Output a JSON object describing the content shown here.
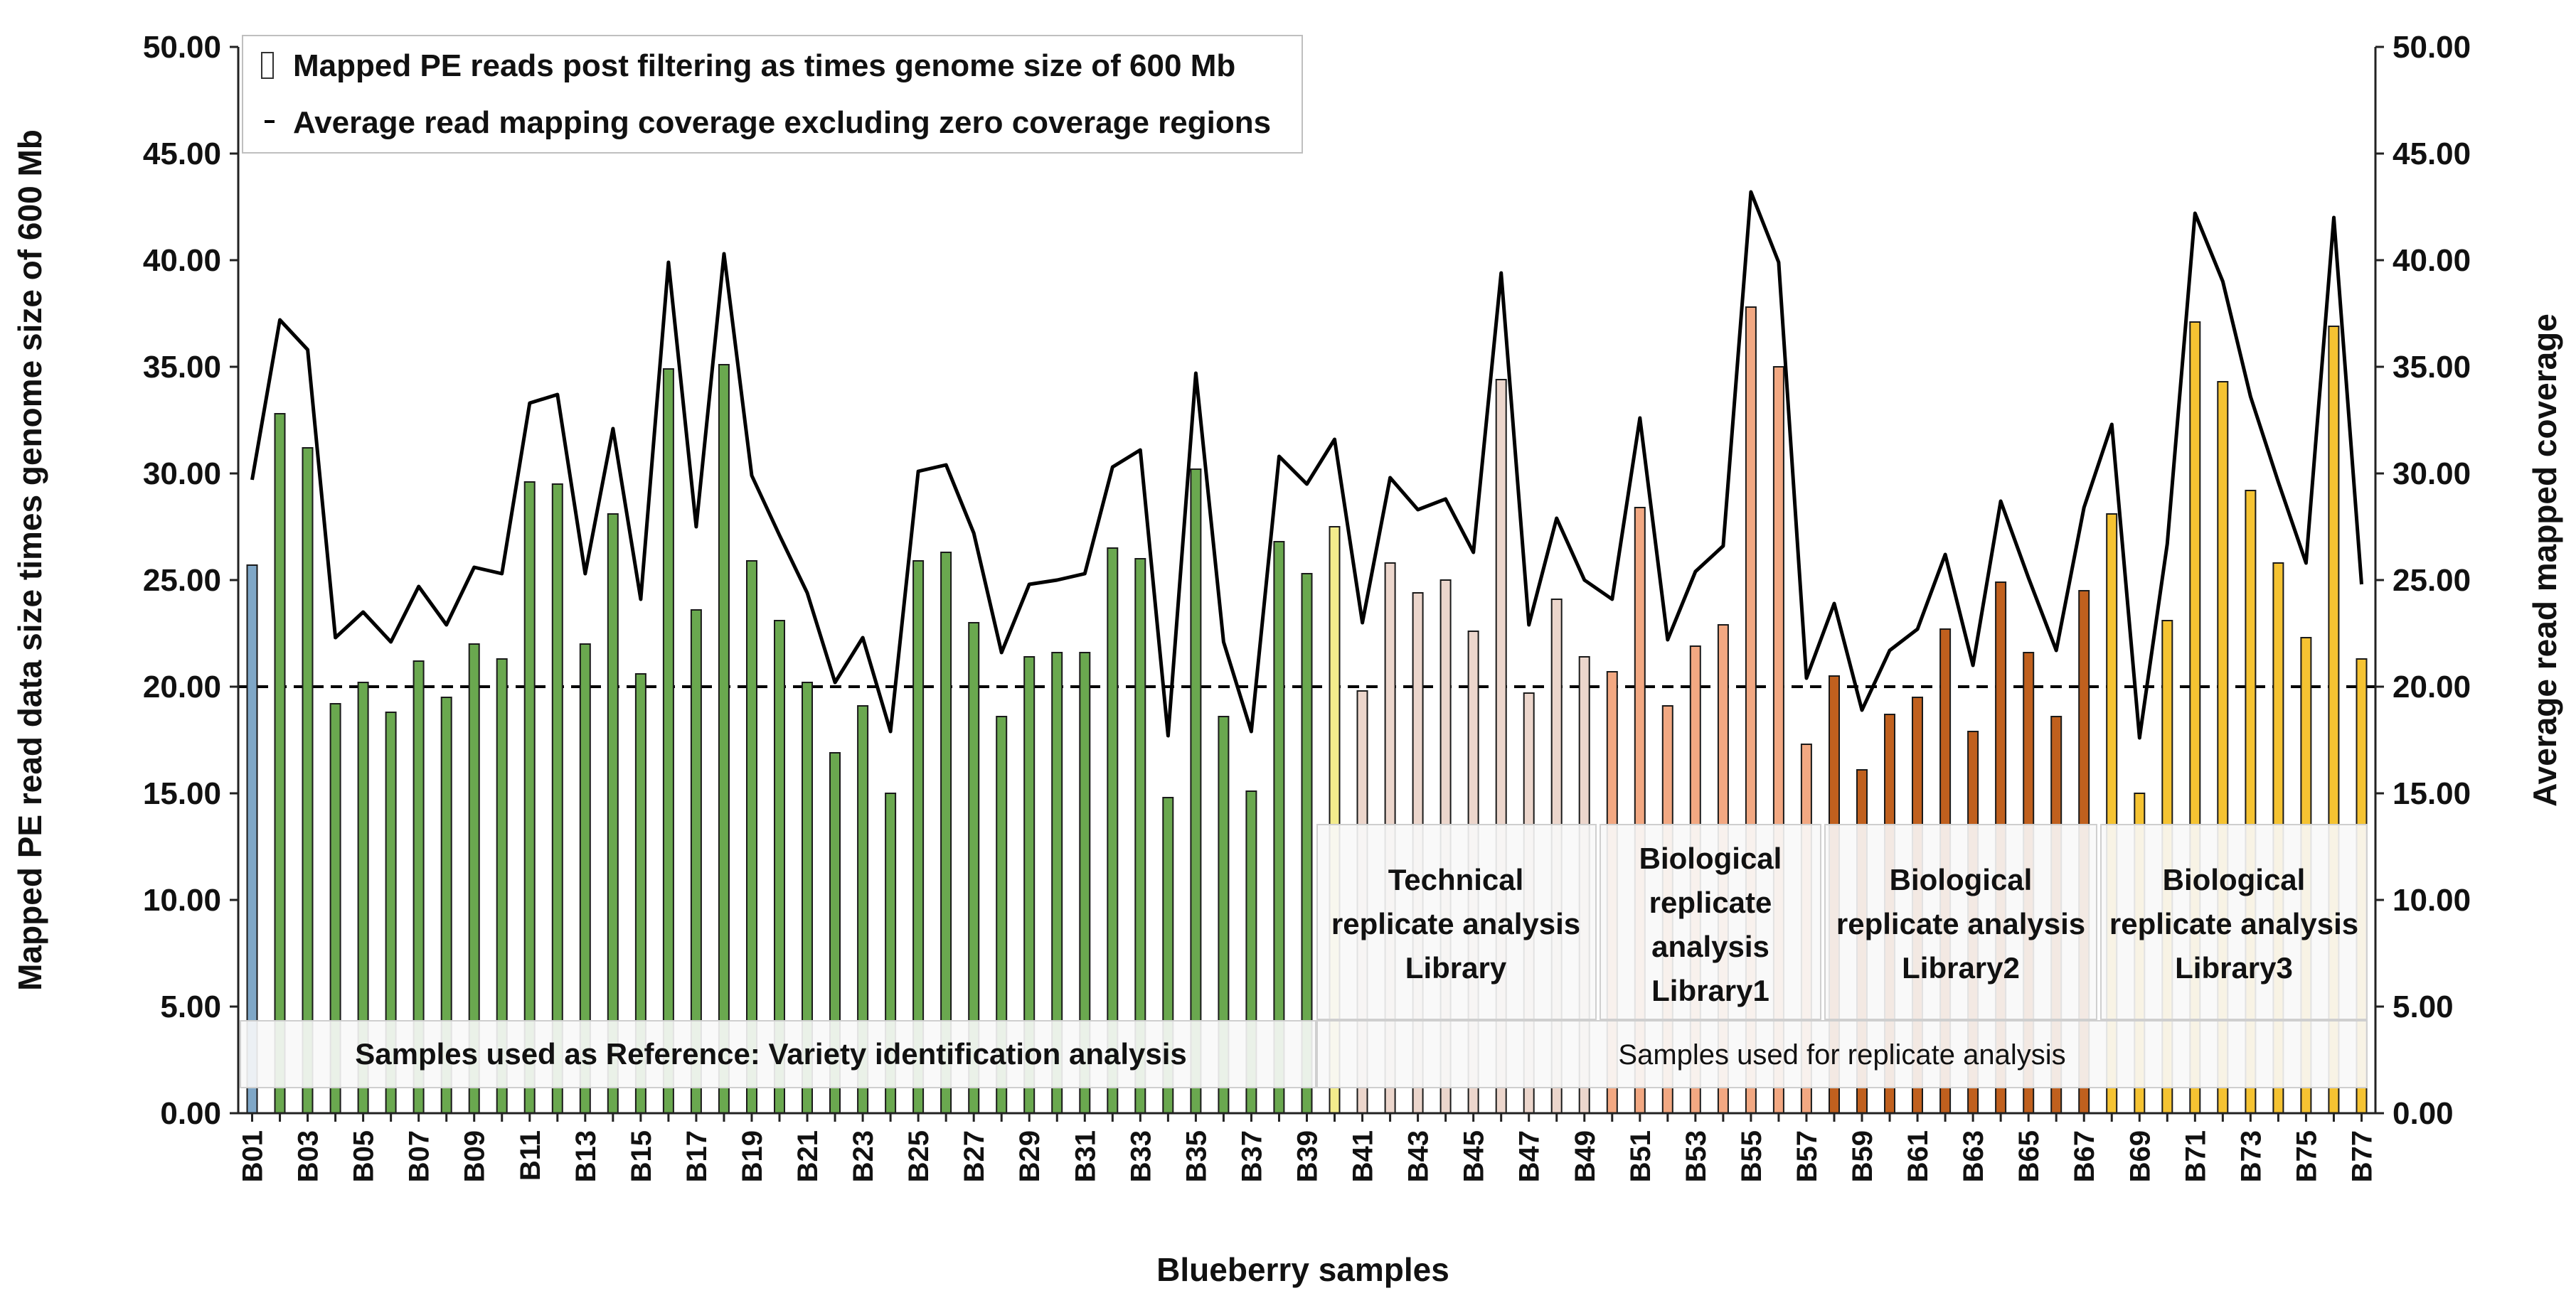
{
  "chart_data": {
    "type": "bar+line",
    "xlabel": "Blueberry samples",
    "ylabel_left": "Mapped PE read data size times genome size of 600 Mb",
    "ylabel_right": "Average read mapped coverage",
    "ylim": [
      0,
      50
    ],
    "yticks": [
      "0.00",
      "5.00",
      "10.00",
      "15.00",
      "20.00",
      "25.00",
      "30.00",
      "35.00",
      "40.00",
      "45.00",
      "50.00"
    ],
    "reference_line": 20,
    "legend": {
      "bars": "Mapped PE reads post filtering as times genome size of 600 Mb",
      "line": "Average read mapping coverage excluding zero coverage regions"
    },
    "categories": [
      "B01",
      "B02",
      "B03",
      "B04",
      "B05",
      "B06",
      "B07",
      "B08",
      "B09",
      "B10",
      "B11",
      "B12",
      "B13",
      "B14",
      "B15",
      "B16",
      "B17",
      "B18",
      "B19",
      "B20",
      "B21",
      "B22",
      "B23",
      "B24",
      "B25",
      "B26",
      "B27",
      "B28",
      "B29",
      "B30",
      "B31",
      "B32",
      "B33",
      "B34",
      "B35",
      "B36",
      "B37",
      "B38",
      "B39",
      "B40",
      "B41",
      "B42",
      "B43",
      "B44",
      "B45",
      "B46",
      "B47",
      "B48",
      "B49",
      "B50",
      "B51",
      "B52",
      "B53",
      "B54",
      "B55",
      "B56",
      "B57",
      "B58",
      "B59",
      "B60",
      "B61",
      "B62",
      "B63",
      "B64",
      "B65",
      "B66",
      "B67",
      "B68",
      "B69",
      "B70",
      "B71",
      "B72",
      "B73",
      "B74",
      "B75",
      "B76",
      "B77"
    ],
    "xtick_labels": [
      "B01",
      "B03",
      "B05",
      "B07",
      "B09",
      "B11",
      "B13",
      "B15",
      "B17",
      "B19",
      "B21",
      "B23",
      "B25",
      "B27",
      "B29",
      "B31",
      "B33",
      "B35",
      "B37",
      "B39",
      "B41",
      "B43",
      "B45",
      "B47",
      "B49",
      "B51",
      "B53",
      "B55",
      "B57",
      "B59",
      "B61",
      "B63",
      "B65",
      "B67",
      "B69",
      "B71",
      "B73",
      "B75",
      "B77"
    ],
    "bars": [
      25.7,
      32.8,
      31.2,
      19.2,
      20.2,
      18.8,
      21.2,
      19.5,
      22.0,
      21.3,
      29.6,
      29.5,
      22.0,
      28.1,
      20.6,
      34.9,
      23.6,
      35.1,
      25.9,
      23.1,
      20.2,
      16.9,
      19.1,
      15.0,
      25.9,
      26.3,
      23.0,
      18.6,
      21.4,
      21.6,
      21.6,
      26.5,
      26.0,
      14.8,
      30.2,
      18.6,
      15.1,
      26.8,
      25.3,
      27.5,
      19.8,
      25.8,
      24.4,
      25.0,
      22.6,
      34.4,
      19.7,
      24.1,
      21.4,
      20.7,
      28.4,
      19.1,
      21.9,
      22.9,
      37.8,
      35.0,
      17.3,
      20.5,
      16.1,
      18.7,
      19.5,
      22.7,
      17.9,
      24.9,
      21.6,
      18.6,
      24.5,
      28.1,
      15.0,
      23.1,
      37.1,
      34.3,
      29.2,
      25.8,
      22.3,
      36.9,
      21.3
    ],
    "line": [
      29.7,
      37.2,
      35.8,
      22.3,
      23.5,
      22.1,
      24.7,
      22.9,
      25.6,
      25.3,
      33.3,
      33.7,
      25.3,
      32.1,
      24.1,
      39.9,
      27.5,
      40.3,
      29.9,
      27.1,
      24.4,
      20.2,
      22.3,
      17.9,
      30.1,
      30.4,
      27.2,
      21.6,
      24.8,
      25.0,
      25.3,
      30.3,
      31.1,
      17.7,
      34.7,
      22.1,
      17.9,
      30.8,
      29.5,
      31.6,
      23.0,
      29.8,
      28.3,
      28.8,
      26.3,
      39.4,
      22.9,
      27.9,
      25.0,
      24.1,
      32.6,
      22.2,
      25.4,
      26.6,
      43.2,
      39.9,
      20.4,
      23.9,
      18.9,
      21.7,
      22.7,
      26.2,
      21.0,
      28.7,
      25.1,
      21.7,
      28.4,
      32.3,
      17.6,
      26.7,
      42.2,
      39.0,
      33.6,
      29.6,
      25.8,
      42.0,
      24.8
    ],
    "bar_colors": [
      "#7fa7c7",
      "#6aa84f",
      "#6aa84f",
      "#6aa84f",
      "#6aa84f",
      "#6aa84f",
      "#6aa84f",
      "#6aa84f",
      "#6aa84f",
      "#6aa84f",
      "#6aa84f",
      "#6aa84f",
      "#6aa84f",
      "#6aa84f",
      "#6aa84f",
      "#6aa84f",
      "#6aa84f",
      "#6aa84f",
      "#6aa84f",
      "#6aa84f",
      "#6aa84f",
      "#6aa84f",
      "#6aa84f",
      "#6aa84f",
      "#6aa84f",
      "#6aa84f",
      "#6aa84f",
      "#6aa84f",
      "#6aa84f",
      "#6aa84f",
      "#6aa84f",
      "#6aa84f",
      "#6aa84f",
      "#6aa84f",
      "#6aa84f",
      "#6aa84f",
      "#6aa84f",
      "#6aa84f",
      "#6aa84f",
      "#f3ec8c",
      "#ecd6cc",
      "#ecd6cc",
      "#ecd6cc",
      "#ecd6cc",
      "#ecd6cc",
      "#ecd6cc",
      "#ecd6cc",
      "#ecd6cc",
      "#ecd6cc",
      "#f2a882",
      "#f2a882",
      "#f2a882",
      "#f2a882",
      "#f2a882",
      "#f2a882",
      "#f2a882",
      "#f2a882",
      "#c0601e",
      "#c0601e",
      "#c0601e",
      "#c0601e",
      "#c0601e",
      "#c0601e",
      "#c0601e",
      "#c0601e",
      "#c0601e",
      "#c0601e",
      "#f5c332",
      "#f5c332",
      "#f5c332",
      "#f5c332",
      "#f5c332",
      "#f5c332",
      "#f5c332",
      "#f5c332",
      "#f5c332",
      "#f5c332"
    ],
    "annotations": {
      "reference_box": "Samples used as Reference: Variety identification analysis",
      "replicate_box": "Samples used for replicate analysis",
      "technical": [
        "Technical",
        "replicate analysis",
        "Library"
      ],
      "library1": [
        "Biological",
        "replicate",
        "analysis",
        "Library1"
      ],
      "library2": [
        "Biological",
        "replicate analysis",
        "Library2"
      ],
      "library3": [
        "Biological",
        "replicate analysis",
        "Library3"
      ]
    }
  }
}
